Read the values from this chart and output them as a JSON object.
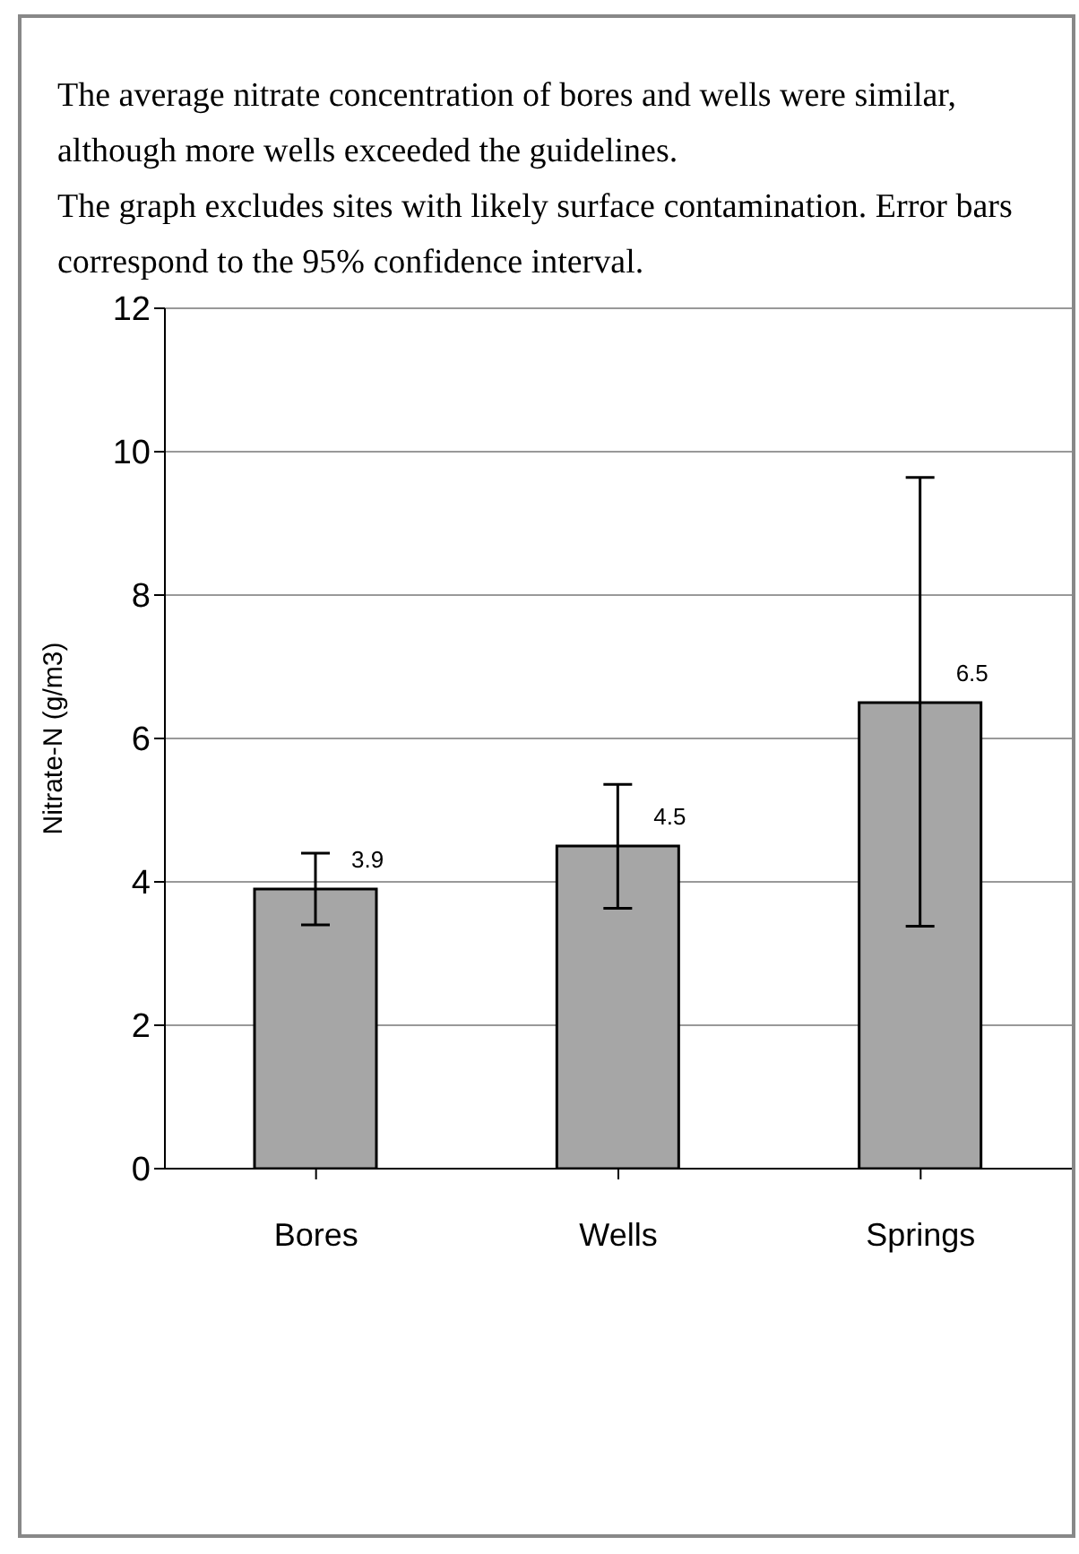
{
  "chart_data": {
    "type": "bar",
    "annotations": [
      "The average nitrate concentration of bores and wells were similar, although more wells exceeded the guidelines.",
      "The graph excludes sites with likely surface contamination.  Error bars correspond to the 95% confidence interval."
    ],
    "ylabel": "Nitrate-N (g/m3)",
    "categories": [
      "Bores",
      "Wells",
      "Springs"
    ],
    "values": [
      3.9,
      4.5,
      6.5
    ],
    "errors": [
      [
        3.4,
        4.4
      ],
      [
        3.63,
        5.36
      ],
      [
        3.38,
        9.64
      ]
    ],
    "color": "#a6a6a6",
    "data_labels": true,
    "ylim": [
      0,
      12
    ],
    "yticks": [
      0,
      2,
      4,
      6,
      8,
      10,
      12
    ],
    "grid": "y"
  }
}
